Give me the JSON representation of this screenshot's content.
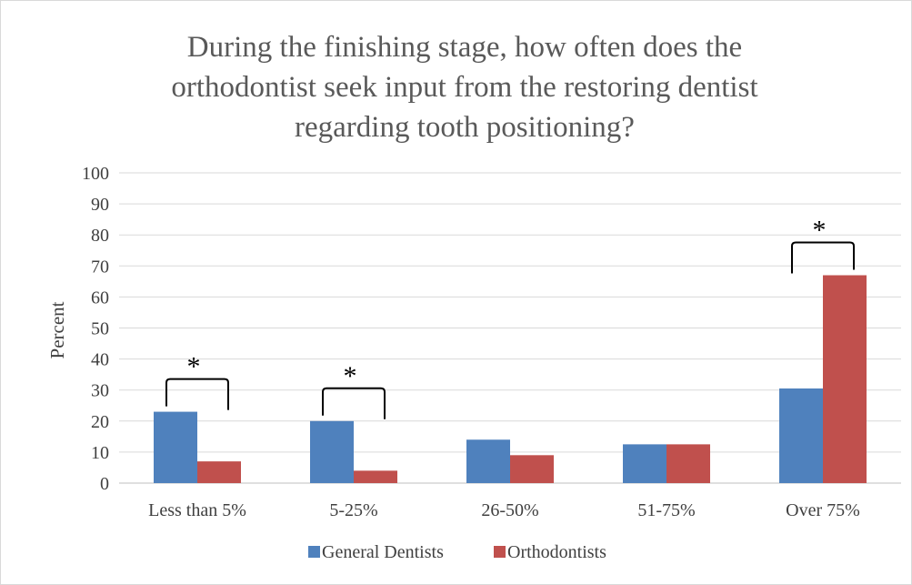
{
  "chart_data": {
    "type": "bar",
    "title_lines": [
      "During the finishing stage, how often does the",
      "orthodontist seek input from the restoring dentist",
      "regarding tooth positioning?"
    ],
    "xlabel": "",
    "ylabel": "Percent",
    "ylim": [
      0,
      100
    ],
    "yticks": [
      0,
      10,
      20,
      30,
      40,
      50,
      60,
      70,
      80,
      90,
      100
    ],
    "categories": [
      "Less than 5%",
      "5-25%",
      "26-50%",
      "51-75%",
      "Over 75%"
    ],
    "series": [
      {
        "name": "General Dentists",
        "color": "#4f81bd",
        "values": [
          23,
          20,
          14,
          12.5,
          30.5
        ]
      },
      {
        "name": "Orthodontists",
        "color": "#c0504d",
        "values": [
          7,
          4,
          9,
          12.5,
          67
        ]
      }
    ],
    "grid": true,
    "legend_position": "bottom",
    "significance": [
      {
        "category": "Less than 5%",
        "marker": "*"
      },
      {
        "category": "5-25%",
        "marker": "*"
      },
      {
        "category": "Over 75%",
        "marker": "*"
      }
    ]
  }
}
